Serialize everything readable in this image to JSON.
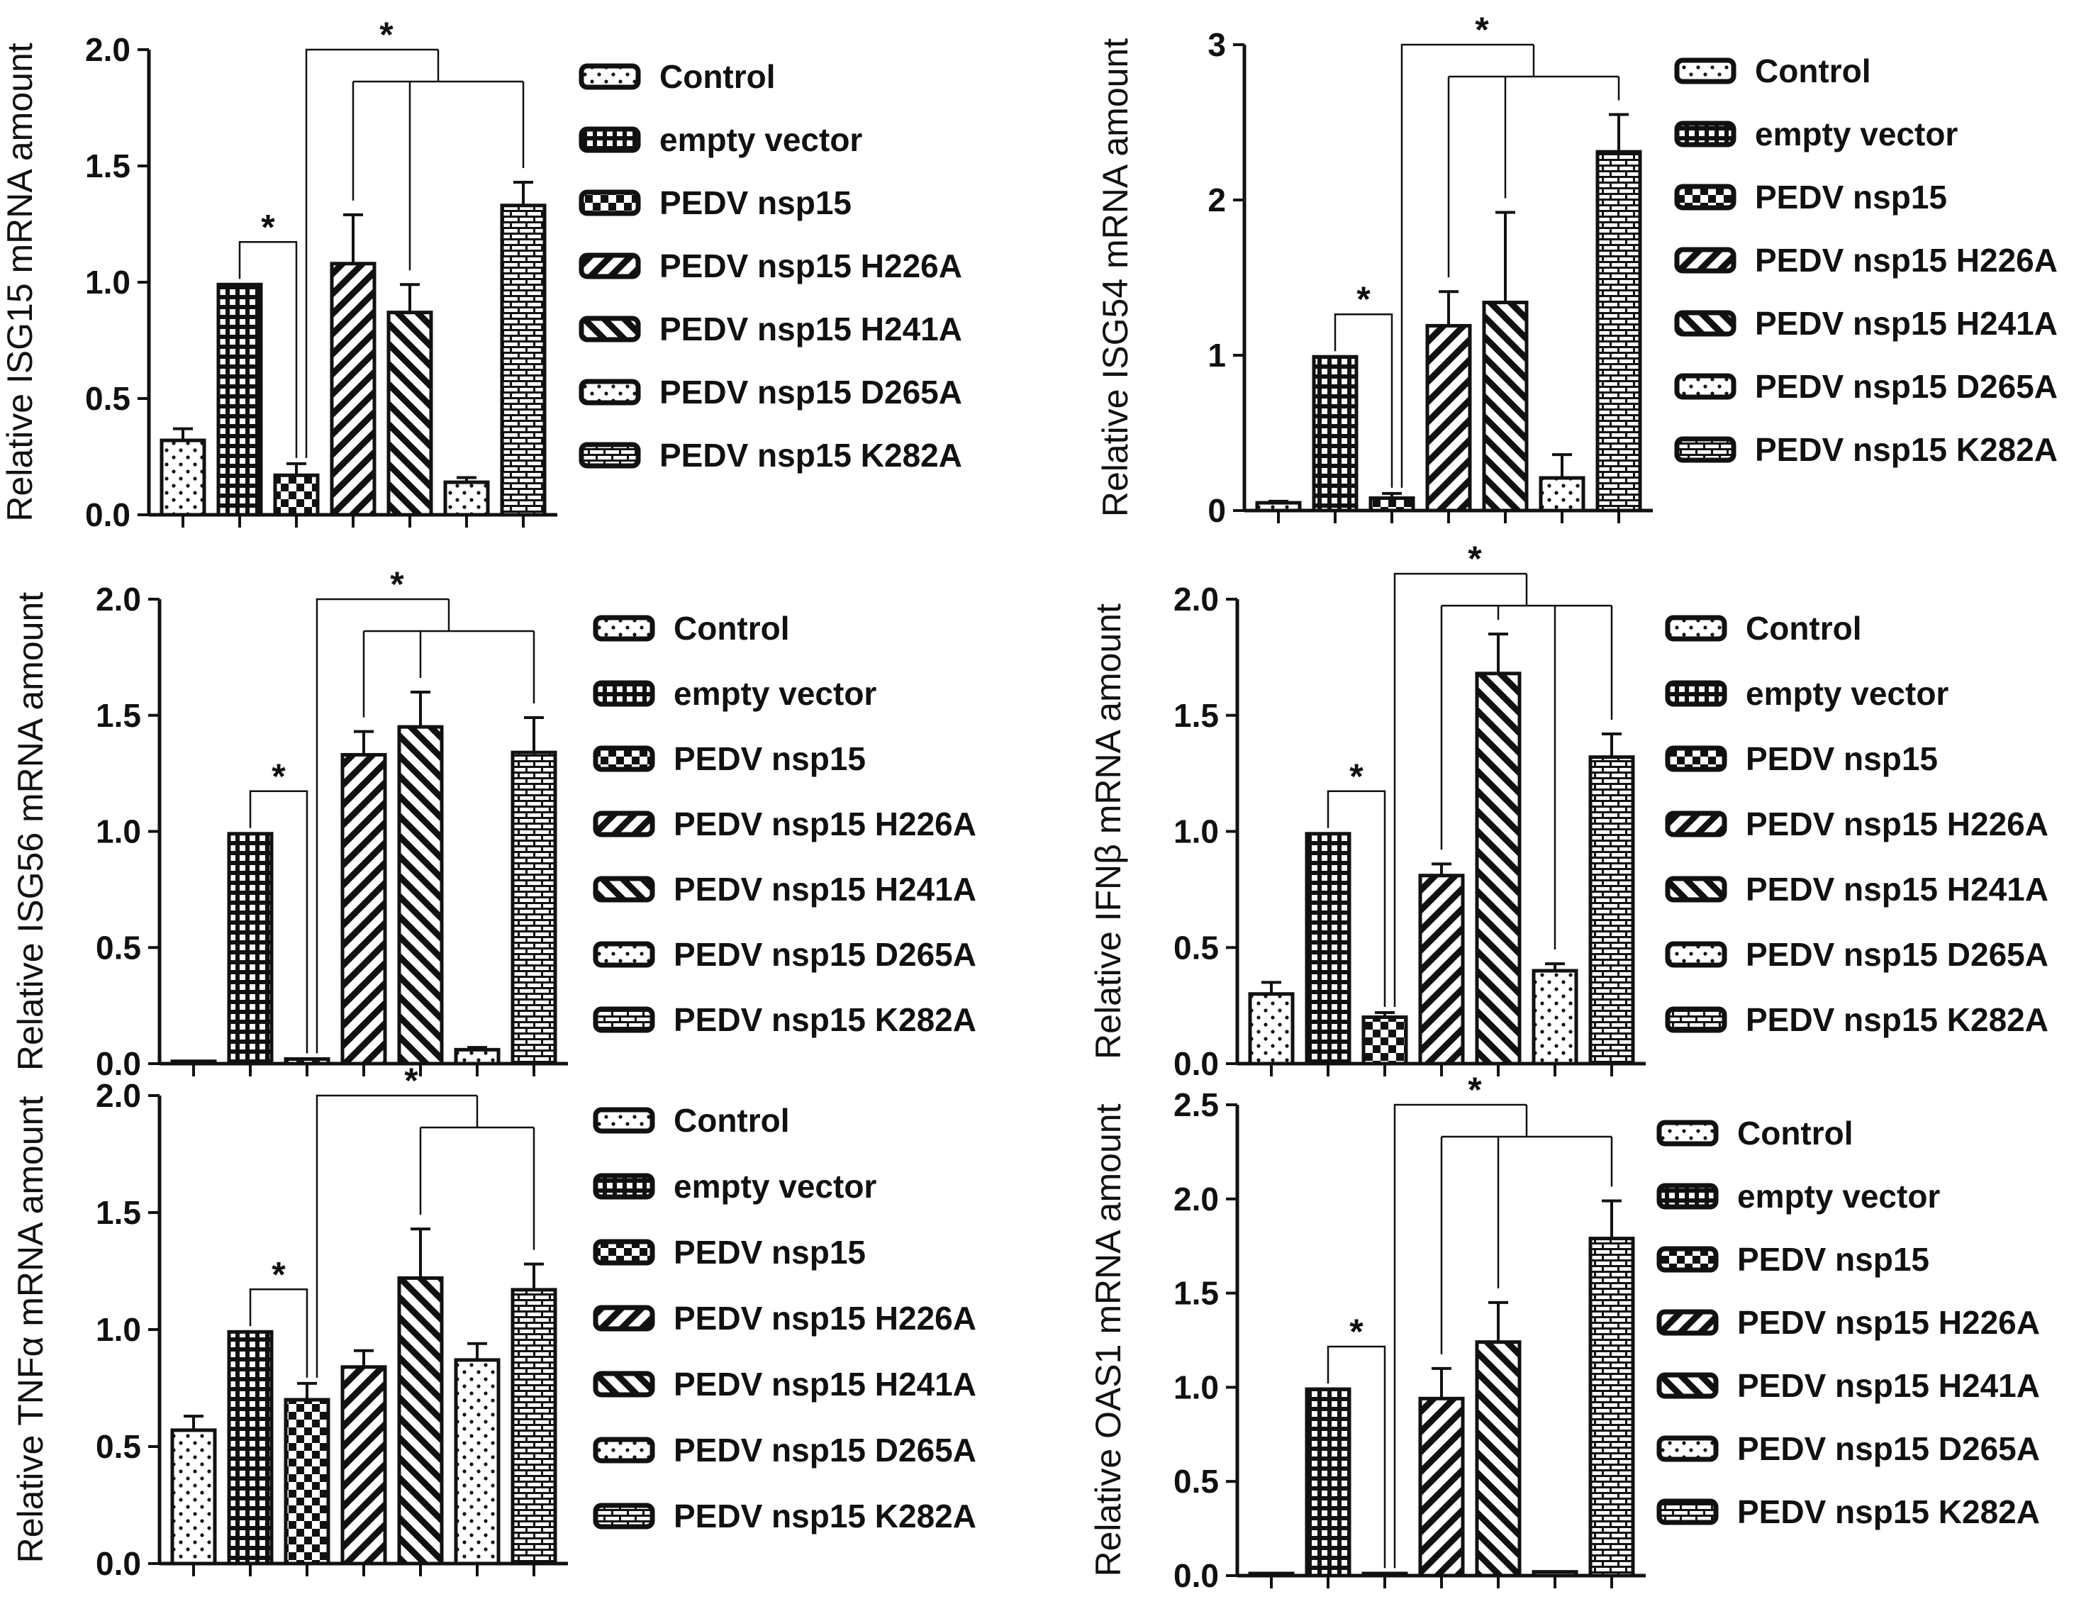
{
  "figure": {
    "colors": {
      "ink": "#111111",
      "background": "#ffffff"
    }
  },
  "chart_data": [
    {
      "type": "bar",
      "ylabel": "Relative ISG15 mRNA amount",
      "ylim": [
        0,
        2.0
      ],
      "yticks": [
        "0.0",
        "0.5",
        "1.0",
        "1.5",
        "2.0"
      ],
      "categories": [
        "Control",
        "empty vector",
        "PEDV nsp15",
        "PEDV nsp15 H226A",
        "PEDV nsp15 H241A",
        "PEDV nsp15 D265A",
        "PEDV nsp15 K282A"
      ],
      "values": [
        0.32,
        0.99,
        0.17,
        1.08,
        0.87,
        0.14,
        1.33
      ],
      "errors": [
        0.05,
        0,
        0.05,
        0.21,
        0.12,
        0.02,
        0.1
      ],
      "patterns": [
        "dots",
        "grid",
        "checker",
        "diag",
        "diagrev",
        "dots",
        "bricks"
      ],
      "significance": [
        {
          "label": "*",
          "from": 1,
          "to": 2
        },
        {
          "label": "*",
          "from": 2,
          "to": [
            3,
            4,
            6
          ]
        }
      ]
    },
    {
      "type": "bar",
      "ylabel": "Relative ISG54 mRNA amount",
      "ylim": [
        0,
        3
      ],
      "yticks": [
        "0",
        "1",
        "2",
        "3"
      ],
      "categories": [
        "Control",
        "empty vector",
        "PEDV nsp15",
        "PEDV nsp15 H226A",
        "PEDV nsp15 H241A",
        "PEDV nsp15 D265A",
        "PEDV nsp15 K282A"
      ],
      "values": [
        0.05,
        0.99,
        0.08,
        1.19,
        1.34,
        0.21,
        2.31
      ],
      "errors": [
        0.01,
        0,
        0.03,
        0.22,
        0.58,
        0.15,
        0.24
      ],
      "patterns": [
        "dots",
        "grid",
        "checker",
        "diag",
        "diagrev",
        "dots",
        "bricks"
      ],
      "significance": [
        {
          "label": "*",
          "from": 1,
          "to": 2
        },
        {
          "label": "*",
          "from": 2,
          "to": [
            3,
            4,
            6
          ]
        }
      ]
    },
    {
      "type": "bar",
      "ylabel": "Relative ISG56 mRNA amount",
      "ylim": [
        0,
        2.0
      ],
      "yticks": [
        "0.0",
        "0.5",
        "1.0",
        "1.5",
        "2.0"
      ],
      "categories": [
        "Control",
        "empty vector",
        "PEDV nsp15",
        "PEDV nsp15 H226A",
        "PEDV nsp15 H241A",
        "PEDV nsp15 D265A",
        "PEDV nsp15 K282A"
      ],
      "values": [
        0.01,
        0.99,
        0.02,
        1.33,
        1.45,
        0.06,
        1.34
      ],
      "errors": [
        0,
        0,
        0,
        0.1,
        0.15,
        0.01,
        0.15
      ],
      "patterns": [
        "dots",
        "grid",
        "checker",
        "diag",
        "diagrev",
        "dots",
        "bricks"
      ],
      "significance": [
        {
          "label": "*",
          "from": 1,
          "to": 2
        },
        {
          "label": "*",
          "from": 2,
          "to": [
            3,
            4,
            6
          ]
        }
      ]
    },
    {
      "type": "bar",
      "ylabel": "Relative IFNβ mRNA amount",
      "ylim": [
        0,
        2.0
      ],
      "yticks": [
        "0.0",
        "0.5",
        "1.0",
        "1.5",
        "2.0"
      ],
      "categories": [
        "Control",
        "empty vector",
        "PEDV nsp15",
        "PEDV nsp15 H226A",
        "PEDV nsp15 H241A",
        "PEDV nsp15 D265A",
        "PEDV nsp15 K282A"
      ],
      "values": [
        0.3,
        0.99,
        0.2,
        0.81,
        1.68,
        0.4,
        1.32
      ],
      "errors": [
        0.05,
        0,
        0.02,
        0.05,
        0.17,
        0.03,
        0.1
      ],
      "patterns": [
        "dots",
        "grid",
        "checker",
        "diag",
        "diagrev",
        "dots",
        "bricks"
      ],
      "significance": [
        {
          "label": "*",
          "from": 1,
          "to": 2
        },
        {
          "label": "*",
          "from": 2,
          "to": [
            3,
            4,
            5,
            6
          ]
        }
      ]
    },
    {
      "type": "bar",
      "ylabel": "Relative TNFα mRNA amount",
      "ylim": [
        0,
        2.0
      ],
      "yticks": [
        "0.0",
        "0.5",
        "1.0",
        "1.5",
        "2.0"
      ],
      "categories": [
        "Control",
        "empty vector",
        "PEDV nsp15",
        "PEDV nsp15 H226A",
        "PEDV nsp15 H241A",
        "PEDV nsp15 D265A",
        "PEDV nsp15 K282A"
      ],
      "values": [
        0.57,
        0.99,
        0.7,
        0.84,
        1.22,
        0.87,
        1.17
      ],
      "errors": [
        0.06,
        0,
        0.07,
        0.07,
        0.21,
        0.07,
        0.11
      ],
      "patterns": [
        "dots",
        "grid",
        "checker",
        "diag",
        "diagrev",
        "dots",
        "bricks"
      ],
      "significance": [
        {
          "label": "*",
          "from": 1,
          "to": 2
        },
        {
          "label": "*",
          "from": 2,
          "to": [
            4,
            6
          ]
        }
      ]
    },
    {
      "type": "bar",
      "ylabel": "Relative OAS1 mRNA amount",
      "ylim": [
        0,
        2.5
      ],
      "yticks": [
        "0.0",
        "0.5",
        "1.0",
        "1.5",
        "2.0",
        "2.5"
      ],
      "categories": [
        "Control",
        "empty vector",
        "PEDV nsp15",
        "PEDV nsp15 H226A",
        "PEDV nsp15 H241A",
        "PEDV nsp15 D265A",
        "PEDV nsp15 K282A"
      ],
      "values": [
        0.01,
        0.99,
        0.01,
        0.94,
        1.24,
        0.02,
        1.79
      ],
      "errors": [
        0,
        0,
        0,
        0.16,
        0.21,
        0,
        0.2
      ],
      "patterns": [
        "dots",
        "grid",
        "checker",
        "diag",
        "diagrev",
        "dots",
        "bricks"
      ],
      "significance": [
        {
          "label": "*",
          "from": 1,
          "to": 2
        },
        {
          "label": "*",
          "from": 2,
          "to": [
            3,
            4,
            6
          ]
        }
      ]
    }
  ]
}
